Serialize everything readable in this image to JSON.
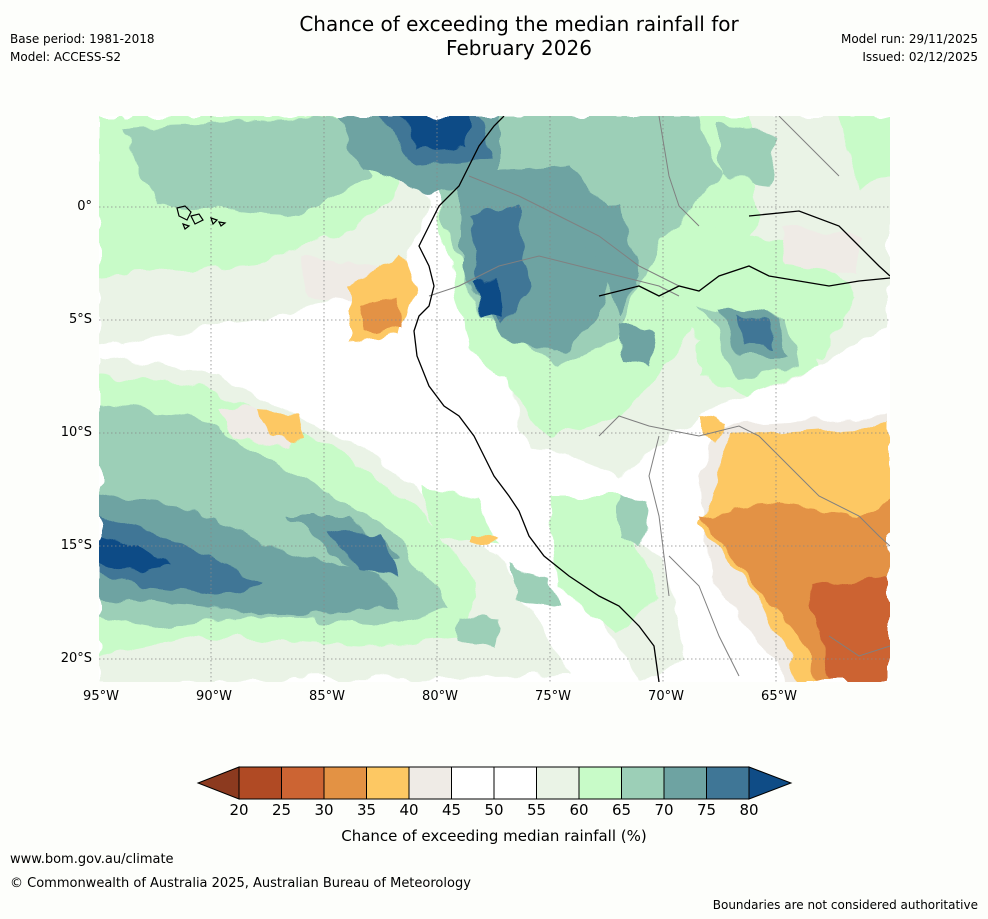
{
  "title_line1": "Chance of exceeding the median rainfall for",
  "title_line2": "February 2026",
  "base_period": "Base period: 1981-2018",
  "model": "Model: ACCESS-S2",
  "model_run": "Model run: 29/11/2025",
  "issued": "Issued: 02/12/2025",
  "lat_labels": [
    "0°",
    "5°S",
    "10°S",
    "15°S",
    "20°S"
  ],
  "lon_labels": [
    "95°W",
    "90°W",
    "85°W",
    "80°W",
    "75°W",
    "70°W",
    "65°W"
  ],
  "colorbar": {
    "label": "Chance of exceeding median rainfall (%)",
    "ticks": [
      "20",
      "25",
      "30",
      "35",
      "40",
      "45",
      "50",
      "55",
      "60",
      "65",
      "70",
      "75",
      "80"
    ],
    "under_color": "#8c3a1f",
    "over_color": "#0f4c86",
    "colors": [
      "#b04a24",
      "#cc6433",
      "#e39244",
      "#fdc863",
      "#efebe6",
      "#ffffff",
      "#ffffff",
      "#eaf3e6",
      "#c8fbc8",
      "#9ccfb7",
      "#6ea3a2",
      "#3f7696"
    ]
  },
  "website": "www.bom.gov.au/climate",
  "copyright": "© Commonwealth of Australia 2025, Australian Bureau of Meteorology",
  "disclaimer": "Boundaries are not considered authoritative"
}
